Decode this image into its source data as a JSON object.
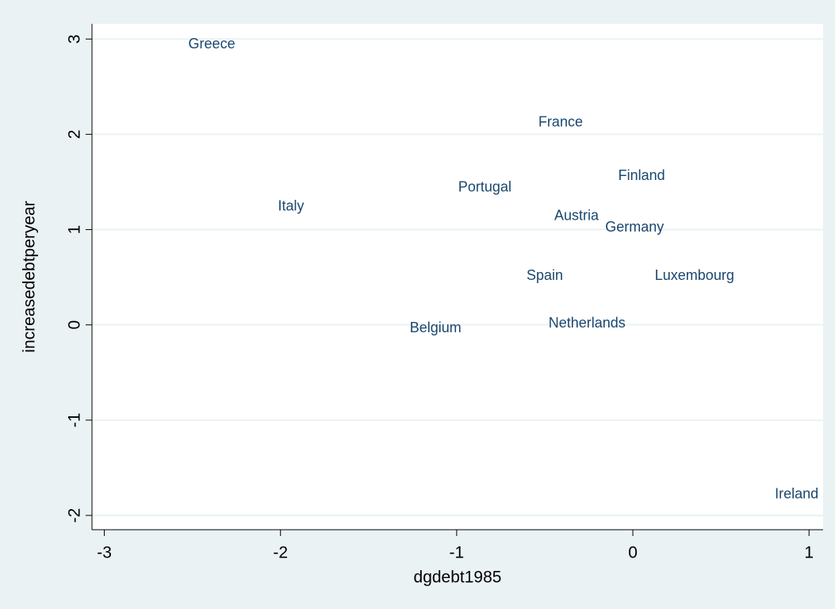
{
  "chart_data": {
    "type": "scatter",
    "x_label": "dgdebt1985",
    "y_label": "increasedebtperyear",
    "series": [
      {
        "color": "#1a476f",
        "labels": [
          "Greece",
          "Italy",
          "Portugal",
          "France",
          "Finland",
          "Austria",
          "Germany",
          "Spain",
          "Luxembourg",
          "Belgium",
          "Netherlands",
          "Ireland"
        ],
        "x": [
          -2.39,
          -1.94,
          -0.84,
          -0.41,
          0.05,
          -0.32,
          0.01,
          -0.5,
          0.35,
          -1.12,
          -0.26,
          0.93
        ],
        "values": [
          2.94,
          1.24,
          1.44,
          2.12,
          1.56,
          1.14,
          1.02,
          0.51,
          0.51,
          -0.04,
          0.01,
          -1.78
        ]
      }
    ],
    "xlim": [
      -3.07,
      1.08
    ],
    "ylim": [
      -2.15,
      3.16
    ],
    "xticks": [
      -3,
      -2,
      -1,
      0,
      1
    ],
    "yticks": [
      -2,
      -1,
      0,
      1,
      2,
      3
    ],
    "grid": true
  }
}
